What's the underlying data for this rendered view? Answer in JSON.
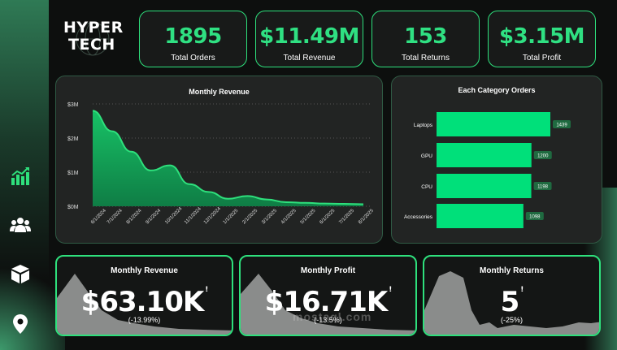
{
  "brand": {
    "line1": "HYPER",
    "line2": "TECH"
  },
  "kpis": [
    {
      "value": "1895",
      "label": "Total Orders"
    },
    {
      "value": "$11.49M",
      "label": "Total Revenue"
    },
    {
      "value": "153",
      "label": "Total Returns"
    },
    {
      "value": "$3.15M",
      "label": "Total Profit"
    }
  ],
  "nav": [
    {
      "icon": "bar-chart-icon"
    },
    {
      "icon": "users-icon"
    },
    {
      "icon": "box-icon"
    },
    {
      "icon": "location-pin-icon"
    }
  ],
  "revenue_chart": {
    "title": "Monthly Revenue",
    "y_ticks": [
      "$3M",
      "$2M",
      "$1M",
      "$0M"
    ],
    "x_ticks": [
      "6/1/2024",
      "7/1/2024",
      "8/1/2024",
      "9/1/2024",
      "10/1/2024",
      "11/1/2024",
      "12/1/2024",
      "1/1/2025",
      "2/1/2025",
      "3/1/2025",
      "4/1/2025",
      "5/1/2025",
      "6/1/2025",
      "7/1/2025",
      "8/1/2025"
    ]
  },
  "category_chart": {
    "title": "Each Category Orders",
    "labels": [
      "Laptops",
      "GPU",
      "CPU",
      "Accessories"
    ],
    "values": [
      "1439",
      "1200",
      "1198",
      "1098"
    ]
  },
  "cards": [
    {
      "title": "Monthly Revenue",
      "value": "$63.10K",
      "marker": "!",
      "change": "(-13.99%)"
    },
    {
      "title": "Monthly Profit",
      "value": "$16.71K",
      "marker": "!",
      "change": "(-13.5%)"
    },
    {
      "title": "Monthly Returns",
      "value": "5",
      "marker": "!",
      "change": "(-25%)"
    }
  ],
  "watermark": "mostaql.com",
  "colors": {
    "accent": "#2ee07c",
    "bar": "#00e07a",
    "background": "#0d0f0e"
  },
  "chart_data": [
    {
      "type": "area",
      "title": "Monthly Revenue",
      "x": [
        "6/1/2024",
        "7/1/2024",
        "8/1/2024",
        "9/1/2024",
        "10/1/2024",
        "11/1/2024",
        "12/1/2024",
        "1/1/2025",
        "2/1/2025",
        "3/1/2025",
        "4/1/2025",
        "5/1/2025",
        "6/1/2025",
        "7/1/2025",
        "8/1/2025"
      ],
      "values": [
        2.8,
        2.2,
        1.6,
        1.05,
        1.2,
        0.65,
        0.42,
        0.22,
        0.3,
        0.2,
        0.12,
        0.1,
        0.08,
        0.07,
        0.06
      ],
      "y_unit": "$M",
      "ylim": [
        0,
        3
      ]
    },
    {
      "type": "bar",
      "orientation": "horizontal",
      "title": "Each Category Orders",
      "categories": [
        "Laptops",
        "GPU",
        "CPU",
        "Accessories"
      ],
      "values": [
        1439,
        1200,
        1198,
        1098
      ]
    }
  ]
}
